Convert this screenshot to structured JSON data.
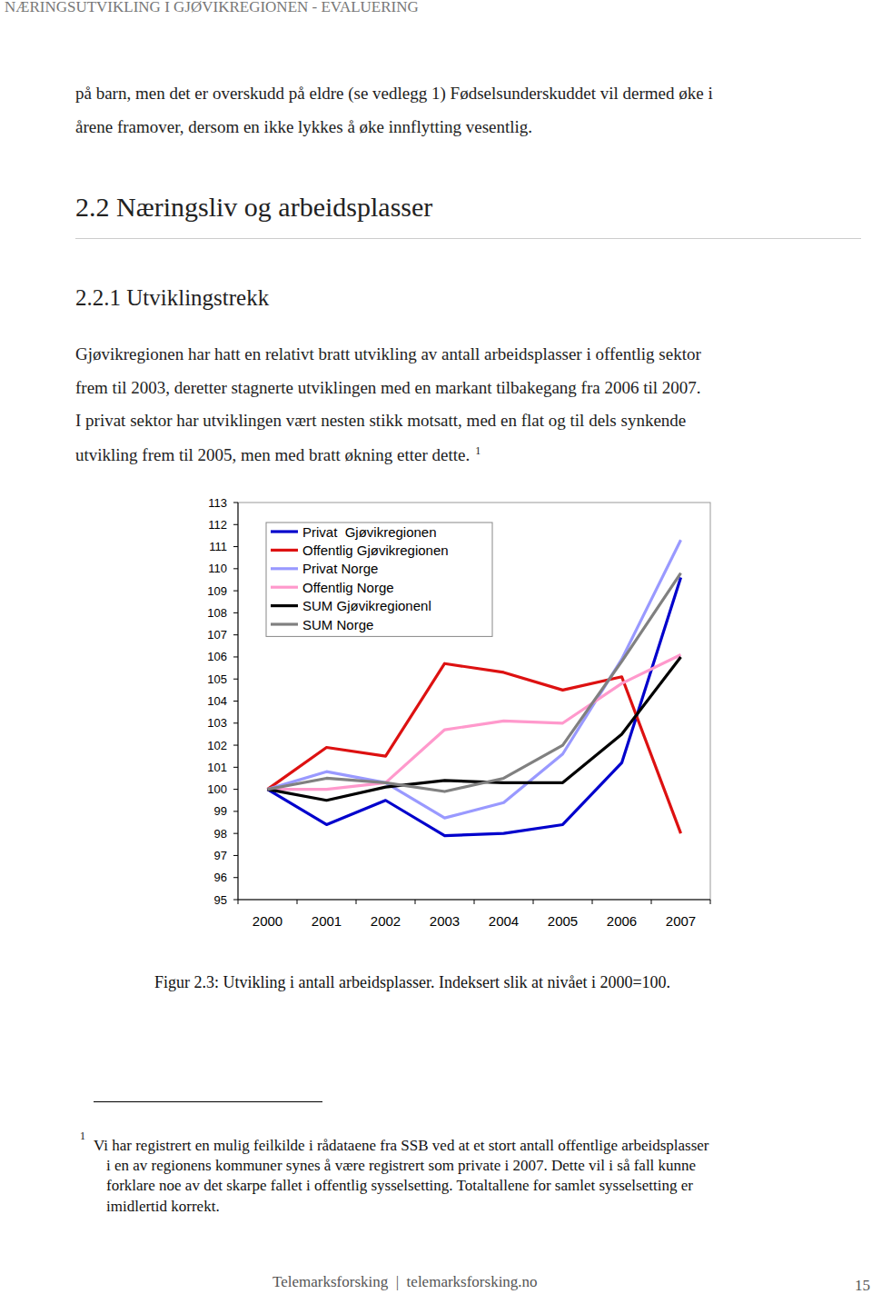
{
  "header": {
    "title": "NÆRINGSUTVIKLING I GJØVIKREGIONEN - EVALUERING"
  },
  "intro": {
    "lines": [
      "på barn, men det er overskudd på eldre (se vedlegg 1) Fødselsunderskuddet vil dermed øke i",
      "årene framover, dersom en ikke lykkes å øke innflytting vesentlig."
    ]
  },
  "section": {
    "title": "2.2 Næringsliv og arbeidsplasser"
  },
  "subsection": {
    "title": "2.2.1 Utviklingstrekk"
  },
  "body": {
    "lines": [
      "Gjøvikregionen har hatt en relativt bratt utvikling av antall arbeidsplasser i offentlig sektor",
      "frem til 2003, deretter stagnerte utviklingen med en markant tilbakegang fra 2006 til 2007.",
      "I privat sektor har utviklingen vært nesten stikk motsatt, med en flat og til dels synkende",
      "utvikling frem til 2005, men med bratt økning etter dette."
    ],
    "footnote_ref": "1"
  },
  "chart_data": {
    "type": "line",
    "categories": [
      "2000",
      "2001",
      "2002",
      "2003",
      "2004",
      "2005",
      "2006",
      "2007"
    ],
    "series": [
      {
        "name": "Privat  Gjøvikregionen",
        "color": "#0000cc",
        "values": [
          100,
          98.4,
          99.5,
          97.9,
          98.0,
          98.4,
          101.2,
          109.6
        ]
      },
      {
        "name": "Offentlig Gjøvikregionen",
        "color": "#dd1111",
        "values": [
          100,
          101.9,
          101.5,
          105.7,
          105.3,
          104.5,
          105.1,
          98.0
        ]
      },
      {
        "name": "Privat Norge",
        "color": "#9999ff",
        "values": [
          100,
          100.8,
          100.3,
          98.7,
          99.4,
          101.6,
          105.9,
          111.3
        ]
      },
      {
        "name": "Offentlig Norge",
        "color": "#ff99cc",
        "values": [
          100,
          100.0,
          100.3,
          102.7,
          103.1,
          103.0,
          104.8,
          106.1
        ]
      },
      {
        "name": "SUM Gjøvikregionenl",
        "color": "#000000",
        "values": [
          100,
          99.5,
          100.1,
          100.4,
          100.3,
          100.3,
          102.5,
          106.0
        ]
      },
      {
        "name": "SUM Norge",
        "color": "#808080",
        "values": [
          100,
          100.5,
          100.3,
          99.9,
          100.5,
          102.0,
          105.8,
          109.8
        ]
      }
    ],
    "ylim": [
      95,
      113
    ],
    "yticks": [
      95,
      96,
      97,
      98,
      99,
      100,
      101,
      102,
      103,
      104,
      105,
      106,
      107,
      108,
      109,
      110,
      111,
      112,
      113
    ],
    "grid": false,
    "legend": "upper left"
  },
  "caption": "Figur 2.3: Utvikling i antall arbeidsplasser. Indeksert slik at nivået i 2000=100.",
  "footnote": {
    "marker": "1",
    "lines": [
      "Vi har registrert en mulig feilkilde i rådataene fra SSB ved at et stort antall offentlige arbeidsplasser",
      "i en av regionens kommuner synes å være registrert som private i 2007. Dette vil i så fall kunne",
      "forklare noe av det skarpe fallet i offentlig sysselsetting. Totaltallene for samlet sysselsetting er",
      "imidlertid korrekt."
    ]
  },
  "footer": {
    "text": "Telemarksforsking  |  telemarksforsking.no",
    "page": 15
  }
}
